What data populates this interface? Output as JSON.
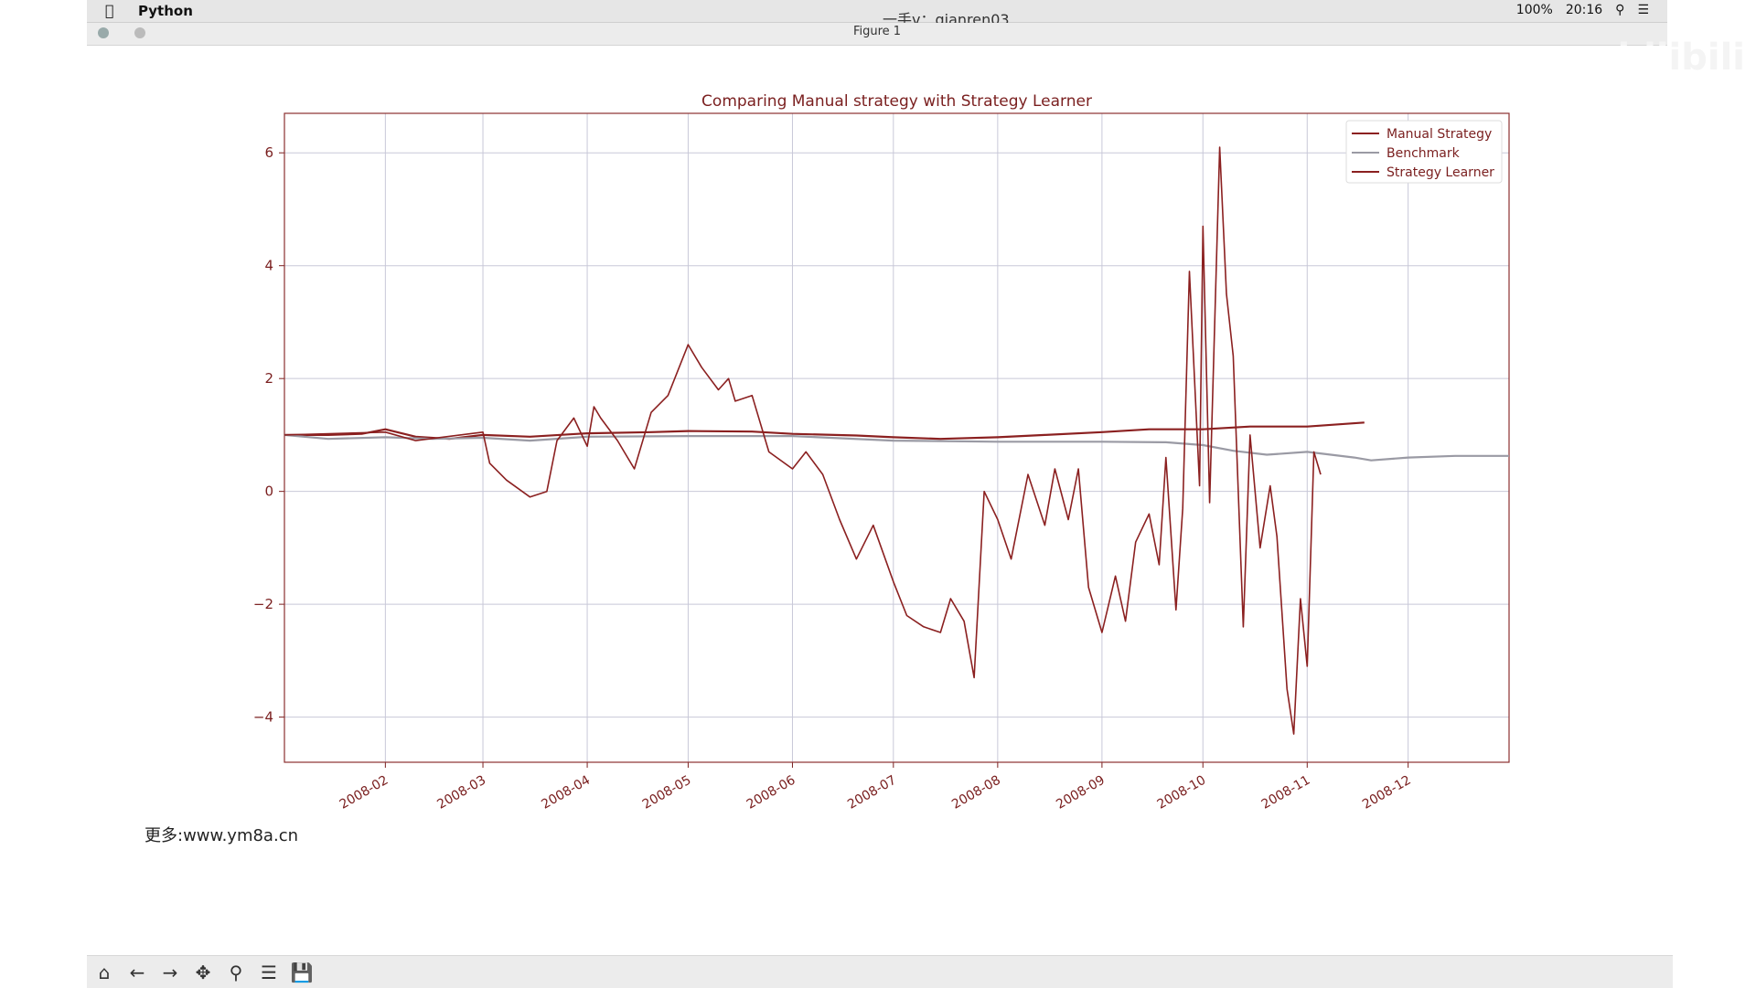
{
  "menubar": {
    "app_name": "Python",
    "center_text": "一手v：qianren03",
    "battery": "100%",
    "time": "20:16"
  },
  "window": {
    "title": "Figure 1"
  },
  "overlay": {
    "site_text": "更多:www.ym8a.cn",
    "brand": "bilibili"
  },
  "toolbar": {
    "buttons": [
      "home-icon",
      "back-icon",
      "forward-icon",
      "pan-icon",
      "zoom-icon",
      "configure-icon",
      "save-icon"
    ]
  },
  "chart_data": {
    "type": "line",
    "title": "Comparing Manual strategy with Strategy Learner",
    "xlabel": "",
    "ylabel": "",
    "xlim": [
      "2008-01-02",
      "2008-12-31"
    ],
    "ylim": [
      -4.8,
      6.7
    ],
    "x_ticks": [
      "2008-02",
      "2008-03",
      "2008-04",
      "2008-05",
      "2008-06",
      "2008-07",
      "2008-08",
      "2008-09",
      "2008-10",
      "2008-11",
      "2008-12"
    ],
    "y_ticks": [
      6,
      4,
      2,
      0,
      -2,
      -4
    ],
    "grid": true,
    "legend_position": "top-right",
    "colors": {
      "manual": "#8b2020",
      "benchmark": "#9a9aa4",
      "learner": "#8b2020",
      "text": "#7a1f1f",
      "grid": "#c8c8d8",
      "spine": "#8b3030"
    },
    "series": [
      {
        "name": "Manual Strategy",
        "color": "#8b2020",
        "x": [
          "2008-01-02",
          "2008-01-15",
          "2008-01-25",
          "2008-02-01",
          "2008-02-10",
          "2008-02-20",
          "2008-03-01",
          "2008-03-15",
          "2008-04-01",
          "2008-04-20",
          "2008-05-01",
          "2008-05-20",
          "2008-06-01",
          "2008-06-20",
          "2008-07-01",
          "2008-07-15",
          "2008-08-01",
          "2008-08-15",
          "2008-09-01",
          "2008-09-15",
          "2008-10-01",
          "2008-10-15",
          "2008-11-01",
          "2008-11-18"
        ],
        "values": [
          1.0,
          1.0,
          1.02,
          1.1,
          0.97,
          0.93,
          1.0,
          0.97,
          1.03,
          1.05,
          1.07,
          1.06,
          1.02,
          0.99,
          0.96,
          0.93,
          0.96,
          1.0,
          1.05,
          1.1,
          1.1,
          1.15,
          1.15,
          1.22
        ]
      },
      {
        "name": "Benchmark",
        "color": "#9a9aa4",
        "x": [
          "2008-01-02",
          "2008-01-15",
          "2008-02-01",
          "2008-02-15",
          "2008-03-01",
          "2008-03-15",
          "2008-04-01",
          "2008-05-01",
          "2008-06-01",
          "2008-07-01",
          "2008-08-01",
          "2008-09-01",
          "2008-09-20",
          "2008-10-01",
          "2008-10-10",
          "2008-10-20",
          "2008-11-01",
          "2008-11-15",
          "2008-11-20",
          "2008-12-01",
          "2008-12-15",
          "2008-12-31"
        ],
        "values": [
          1.0,
          0.93,
          0.96,
          0.93,
          0.95,
          0.9,
          0.97,
          0.98,
          0.98,
          0.9,
          0.88,
          0.88,
          0.87,
          0.82,
          0.72,
          0.65,
          0.7,
          0.6,
          0.55,
          0.6,
          0.63,
          0.63
        ]
      },
      {
        "name": "Strategy Learner",
        "color": "#8b2020",
        "x": [
          "2008-01-02",
          "2008-02-01",
          "2008-02-10",
          "2008-03-01",
          "2008-03-03",
          "2008-03-08",
          "2008-03-15",
          "2008-03-20",
          "2008-03-23",
          "2008-03-28",
          "2008-04-01",
          "2008-04-03",
          "2008-04-05",
          "2008-04-10",
          "2008-04-15",
          "2008-04-20",
          "2008-04-25",
          "2008-05-01",
          "2008-05-05",
          "2008-05-10",
          "2008-05-13",
          "2008-05-15",
          "2008-05-20",
          "2008-05-25",
          "2008-06-01",
          "2008-06-05",
          "2008-06-10",
          "2008-06-15",
          "2008-06-20",
          "2008-06-25",
          "2008-07-01",
          "2008-07-05",
          "2008-07-10",
          "2008-07-15",
          "2008-07-18",
          "2008-07-22",
          "2008-07-25",
          "2008-07-28",
          "2008-08-01",
          "2008-08-05",
          "2008-08-10",
          "2008-08-15",
          "2008-08-18",
          "2008-08-22",
          "2008-08-25",
          "2008-08-28",
          "2008-09-01",
          "2008-09-05",
          "2008-09-08",
          "2008-09-11",
          "2008-09-15",
          "2008-09-18",
          "2008-09-20",
          "2008-09-23",
          "2008-09-25",
          "2008-09-27",
          "2008-09-30",
          "2008-10-01",
          "2008-10-03",
          "2008-10-06",
          "2008-10-08",
          "2008-10-10",
          "2008-10-13",
          "2008-10-15",
          "2008-10-18",
          "2008-10-21",
          "2008-10-23",
          "2008-10-26",
          "2008-10-28",
          "2008-10-30",
          "2008-11-01",
          "2008-11-03",
          "2008-11-05"
        ],
        "values": [
          1.0,
          1.05,
          0.9,
          1.05,
          0.5,
          0.2,
          -0.1,
          0.0,
          0.9,
          1.3,
          0.8,
          1.5,
          1.3,
          0.9,
          0.4,
          1.4,
          1.7,
          2.6,
          2.2,
          1.8,
          2.0,
          1.6,
          1.7,
          0.7,
          0.4,
          0.7,
          0.3,
          -0.5,
          -1.2,
          -0.6,
          -1.6,
          -2.2,
          -2.4,
          -2.5,
          -1.9,
          -2.3,
          -3.3,
          0.0,
          -0.5,
          -1.2,
          0.3,
          -0.6,
          0.4,
          -0.5,
          0.4,
          -1.7,
          -2.5,
          -1.5,
          -2.3,
          -0.9,
          -0.4,
          -1.3,
          0.6,
          -2.1,
          -0.3,
          3.9,
          0.1,
          4.7,
          -0.2,
          6.1,
          3.5,
          2.4,
          -2.4,
          1.0,
          -1.0,
          0.1,
          -0.8,
          -3.5,
          -4.3,
          -1.9,
          -3.1,
          0.7,
          0.3
        ]
      }
    ]
  }
}
